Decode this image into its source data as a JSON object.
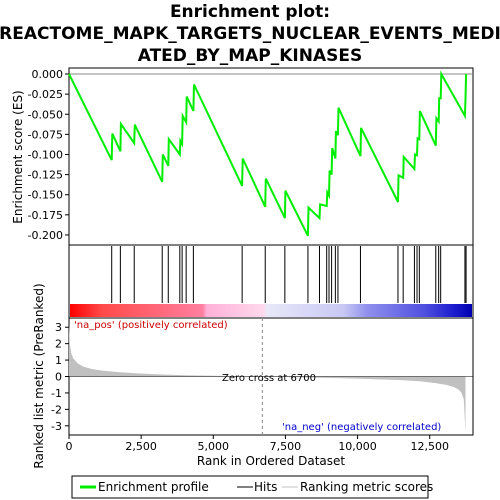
{
  "chart_data": {
    "type": "line",
    "title_lines": [
      "Enrichment plot:",
      "REACTOME_MAPK_TARGETS_NUCLEAR_EVENTS_MEDI",
      "ATED_BY_MAP_KINASES"
    ],
    "top_panel": {
      "ylabel": "Enrichment score (ES)",
      "ylim": [
        -0.21,
        0.005
      ],
      "yticks": [
        0.0,
        -0.025,
        -0.05,
        -0.075,
        -0.1,
        -0.125,
        -0.15,
        -0.175,
        -0.2
      ],
      "ytick_labels": [
        "0.000",
        "-0.025",
        "-0.050",
        "-0.075",
        "-0.100",
        "-0.125",
        "-0.150",
        "-0.175",
        "-0.200"
      ],
      "series": [
        {
          "name": "Enrichment profile",
          "color": "#00ee00",
          "x": [
            0,
            1480,
            1500,
            1780,
            1800,
            2260,
            2280,
            3230,
            3250,
            3440,
            3460,
            3840,
            3860,
            3920,
            3940,
            4060,
            4080,
            4310,
            4330,
            6000,
            6020,
            6800,
            6820,
            7480,
            7500,
            8280,
            8300,
            8680,
            8700,
            8930,
            8950,
            9010,
            9030,
            9100,
            9120,
            9230,
            9250,
            9320,
            9340,
            10100,
            10120,
            11400,
            11420,
            11580,
            11600,
            11970,
            11990,
            12060,
            12080,
            12140,
            12160,
            12710,
            12730,
            12810,
            12830,
            12880,
            12900,
            13720,
            13740,
            13760
          ],
          "y": [
            0.0,
            -0.107,
            -0.074,
            -0.096,
            -0.062,
            -0.086,
            -0.063,
            -0.134,
            -0.1,
            -0.114,
            -0.081,
            -0.1,
            -0.083,
            -0.087,
            -0.052,
            -0.06,
            -0.028,
            -0.046,
            -0.013,
            -0.139,
            -0.105,
            -0.165,
            -0.13,
            -0.179,
            -0.145,
            -0.201,
            -0.166,
            -0.179,
            -0.162,
            -0.164,
            -0.147,
            -0.151,
            -0.12,
            -0.125,
            -0.092,
            -0.105,
            -0.071,
            -0.076,
            -0.042,
            -0.102,
            -0.067,
            -0.159,
            -0.126,
            -0.129,
            -0.103,
            -0.118,
            -0.1,
            -0.101,
            -0.08,
            -0.081,
            -0.046,
            -0.089,
            -0.055,
            -0.059,
            -0.03,
            -0.03,
            0.0,
            -0.052,
            -0.031,
            0.0
          ]
        }
      ]
    },
    "hits_panel": {
      "hit_positions": [
        1480,
        1780,
        2260,
        3230,
        3440,
        3840,
        3920,
        4060,
        4310,
        6000,
        6800,
        7480,
        8280,
        8680,
        8930,
        9010,
        9100,
        9230,
        9320,
        10100,
        11400,
        11580,
        11970,
        12060,
        12140,
        12710,
        12810,
        12880,
        13720,
        13760
      ]
    },
    "bottom_panel": {
      "ylabel": "Ranked list metric (PreRanked)",
      "xlabel": "Rank in Ordered Dataset",
      "ylim": [
        -3.5,
        3.5
      ],
      "yticks": [
        3,
        2,
        1,
        0,
        -1,
        -2,
        -3
      ],
      "ytick_labels": [
        "3",
        "2",
        "1",
        "0",
        "-1",
        "-2",
        "-3"
      ],
      "xlim": [
        0,
        14000
      ],
      "xticks": [
        0,
        2500,
        5000,
        7500,
        10000,
        12500
      ],
      "xtick_labels": [
        "0",
        "2,500",
        "5,000",
        "7,500",
        "10,000",
        "12,500"
      ],
      "metric_x": [
        0,
        30,
        80,
        150,
        300,
        500,
        800,
        1200,
        1700,
        2300,
        3000,
        4000,
        5000,
        6000,
        6700,
        7500,
        8500,
        9500,
        10500,
        11500,
        12200,
        12700,
        13100,
        13350,
        13500,
        13600,
        13680,
        13740
      ],
      "metric_y": [
        3.2,
        2.0,
        1.4,
        1.1,
        0.8,
        0.6,
        0.45,
        0.35,
        0.27,
        0.2,
        0.14,
        0.08,
        0.04,
        0.015,
        0.0,
        -0.03,
        -0.07,
        -0.11,
        -0.16,
        -0.22,
        -0.3,
        -0.4,
        -0.52,
        -0.65,
        -0.8,
        -1.0,
        -1.4,
        -3.4
      ],
      "zero_cross_label": "Zero cross at 6700",
      "zero_cross_x": 6700,
      "pos_label": "'na_pos' (positively correlated)",
      "neg_label": "'na_neg' (negatively correlated)"
    },
    "legend": [
      {
        "label": "Enrichment profile",
        "color": "#00ee00"
      },
      {
        "label": "Hits",
        "color": "#000000"
      },
      {
        "label": "Ranking metric scores",
        "color": "#c0c0c0"
      }
    ],
    "x_max": 13760
  }
}
